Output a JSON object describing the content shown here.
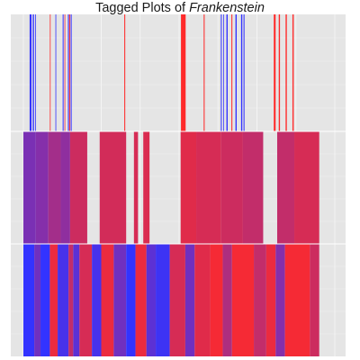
{
  "title_prefix": "Tagged Plots of ",
  "title_italic": "Frankenstein",
  "colors": {
    "background": "#e5e5e5",
    "gridline": "#f4f4f4",
    "blue": "#3333ff",
    "red": "#ff2a2a"
  },
  "chart_data": {
    "type": "heatmap",
    "title": "Tagged Plots of Frankenstein",
    "x_domain": [
      0,
      1
    ],
    "grid": true,
    "panels": [
      {
        "name": "",
        "marks": [
          {
            "x0": 0.02,
            "x1": 0.026,
            "c": 0.0
          },
          {
            "x0": 0.03,
            "x1": 0.034,
            "c": 0.0
          },
          {
            "x0": 0.038,
            "x1": 0.04,
            "c": 0.0
          },
          {
            "x0": 0.085,
            "x1": 0.087,
            "c": 1.0
          },
          {
            "x0": 0.103,
            "x1": 0.105,
            "c": 0.0
          },
          {
            "x0": 0.126,
            "x1": 0.129,
            "c": 0.0
          },
          {
            "x0": 0.132,
            "x1": 0.134,
            "c": 0.9
          },
          {
            "x0": 0.143,
            "x1": 0.146,
            "c": 0.0
          },
          {
            "x0": 0.147,
            "x1": 0.15,
            "c": 1.0
          },
          {
            "x0": 0.152,
            "x1": 0.155,
            "c": 0.0
          },
          {
            "x0": 0.324,
            "x1": 0.327,
            "c": 1.0
          },
          {
            "x0": 0.506,
            "x1": 0.521,
            "c": 1.0
          },
          {
            "x0": 0.579,
            "x1": 0.582,
            "c": 1.0
          },
          {
            "x0": 0.634,
            "x1": 0.637,
            "c": 0.0
          },
          {
            "x0": 0.642,
            "x1": 0.644,
            "c": 0.0
          },
          {
            "x0": 0.652,
            "x1": 0.656,
            "c": 0.0
          },
          {
            "x0": 0.668,
            "x1": 0.671,
            "c": 1.0
          },
          {
            "x0": 0.681,
            "x1": 0.685,
            "c": 0.0
          },
          {
            "x0": 0.699,
            "x1": 0.703,
            "c": 0.0
          },
          {
            "x0": 0.707,
            "x1": 0.71,
            "c": 0.0
          },
          {
            "x0": 0.804,
            "x1": 0.81,
            "c": 1.0
          },
          {
            "x0": 0.82,
            "x1": 0.824,
            "c": 1.0
          },
          {
            "x0": 0.842,
            "x1": 0.846,
            "c": 1.0
          },
          {
            "x0": 0.864,
            "x1": 0.868,
            "c": 1.0
          }
        ]
      },
      {
        "name": "",
        "marks": [
          {
            "x0": 0.0,
            "x1": 0.04,
            "c": 0.35
          },
          {
            "x0": 0.04,
            "x1": 0.08,
            "c": 0.4
          },
          {
            "x0": 0.08,
            "x1": 0.12,
            "c": 0.55
          },
          {
            "x0": 0.12,
            "x1": 0.15,
            "c": 0.45
          },
          {
            "x0": 0.15,
            "x1": 0.205,
            "c": 0.75
          },
          {
            "x0": 0.245,
            "x1": 0.33,
            "c": 0.78
          },
          {
            "x0": 0.355,
            "x1": 0.368,
            "c": 0.8
          },
          {
            "x0": 0.385,
            "x1": 0.405,
            "c": 0.82
          },
          {
            "x0": 0.505,
            "x1": 0.555,
            "c": 0.85
          },
          {
            "x0": 0.555,
            "x1": 0.635,
            "c": 0.8
          },
          {
            "x0": 0.635,
            "x1": 0.705,
            "c": 0.75
          },
          {
            "x0": 0.705,
            "x1": 0.77,
            "c": 0.7
          },
          {
            "x0": 0.815,
            "x1": 0.87,
            "c": 0.7
          },
          {
            "x0": 0.87,
            "x1": 0.95,
            "c": 0.8
          }
        ]
      },
      {
        "name": "",
        "marks": [
          {
            "x0": 0.0,
            "x1": 0.035,
            "c": 0.0
          },
          {
            "x0": 0.035,
            "x1": 0.055,
            "c": 0.3
          },
          {
            "x0": 0.055,
            "x1": 0.085,
            "c": 0.0
          },
          {
            "x0": 0.085,
            "x1": 0.11,
            "c": 0.9
          },
          {
            "x0": 0.11,
            "x1": 0.145,
            "c": 0.1
          },
          {
            "x0": 0.145,
            "x1": 0.16,
            "c": 0.7
          },
          {
            "x0": 0.16,
            "x1": 0.18,
            "c": 0.2
          },
          {
            "x0": 0.18,
            "x1": 0.22,
            "c": 0.8
          },
          {
            "x0": 0.22,
            "x1": 0.25,
            "c": 0.1
          },
          {
            "x0": 0.25,
            "x1": 0.29,
            "c": 0.9
          },
          {
            "x0": 0.29,
            "x1": 0.33,
            "c": 0.3
          },
          {
            "x0": 0.33,
            "x1": 0.36,
            "c": 0.0
          },
          {
            "x0": 0.36,
            "x1": 0.395,
            "c": 0.9
          },
          {
            "x0": 0.395,
            "x1": 0.425,
            "c": 0.2
          },
          {
            "x0": 0.425,
            "x1": 0.47,
            "c": 0.05
          },
          {
            "x0": 0.47,
            "x1": 0.52,
            "c": 0.8
          },
          {
            "x0": 0.52,
            "x1": 0.55,
            "c": 0.3
          },
          {
            "x0": 0.55,
            "x1": 0.6,
            "c": 0.85
          },
          {
            "x0": 0.6,
            "x1": 0.64,
            "c": 0.95
          },
          {
            "x0": 0.64,
            "x1": 0.67,
            "c": 0.6
          },
          {
            "x0": 0.67,
            "x1": 0.74,
            "c": 0.95
          },
          {
            "x0": 0.74,
            "x1": 0.78,
            "c": 0.7
          },
          {
            "x0": 0.78,
            "x1": 0.81,
            "c": 0.9
          },
          {
            "x0": 0.81,
            "x1": 0.84,
            "c": 0.4
          },
          {
            "x0": 0.84,
            "x1": 0.92,
            "c": 0.95
          },
          {
            "x0": 0.92,
            "x1": 0.95,
            "c": 0.75
          }
        ]
      }
    ]
  }
}
